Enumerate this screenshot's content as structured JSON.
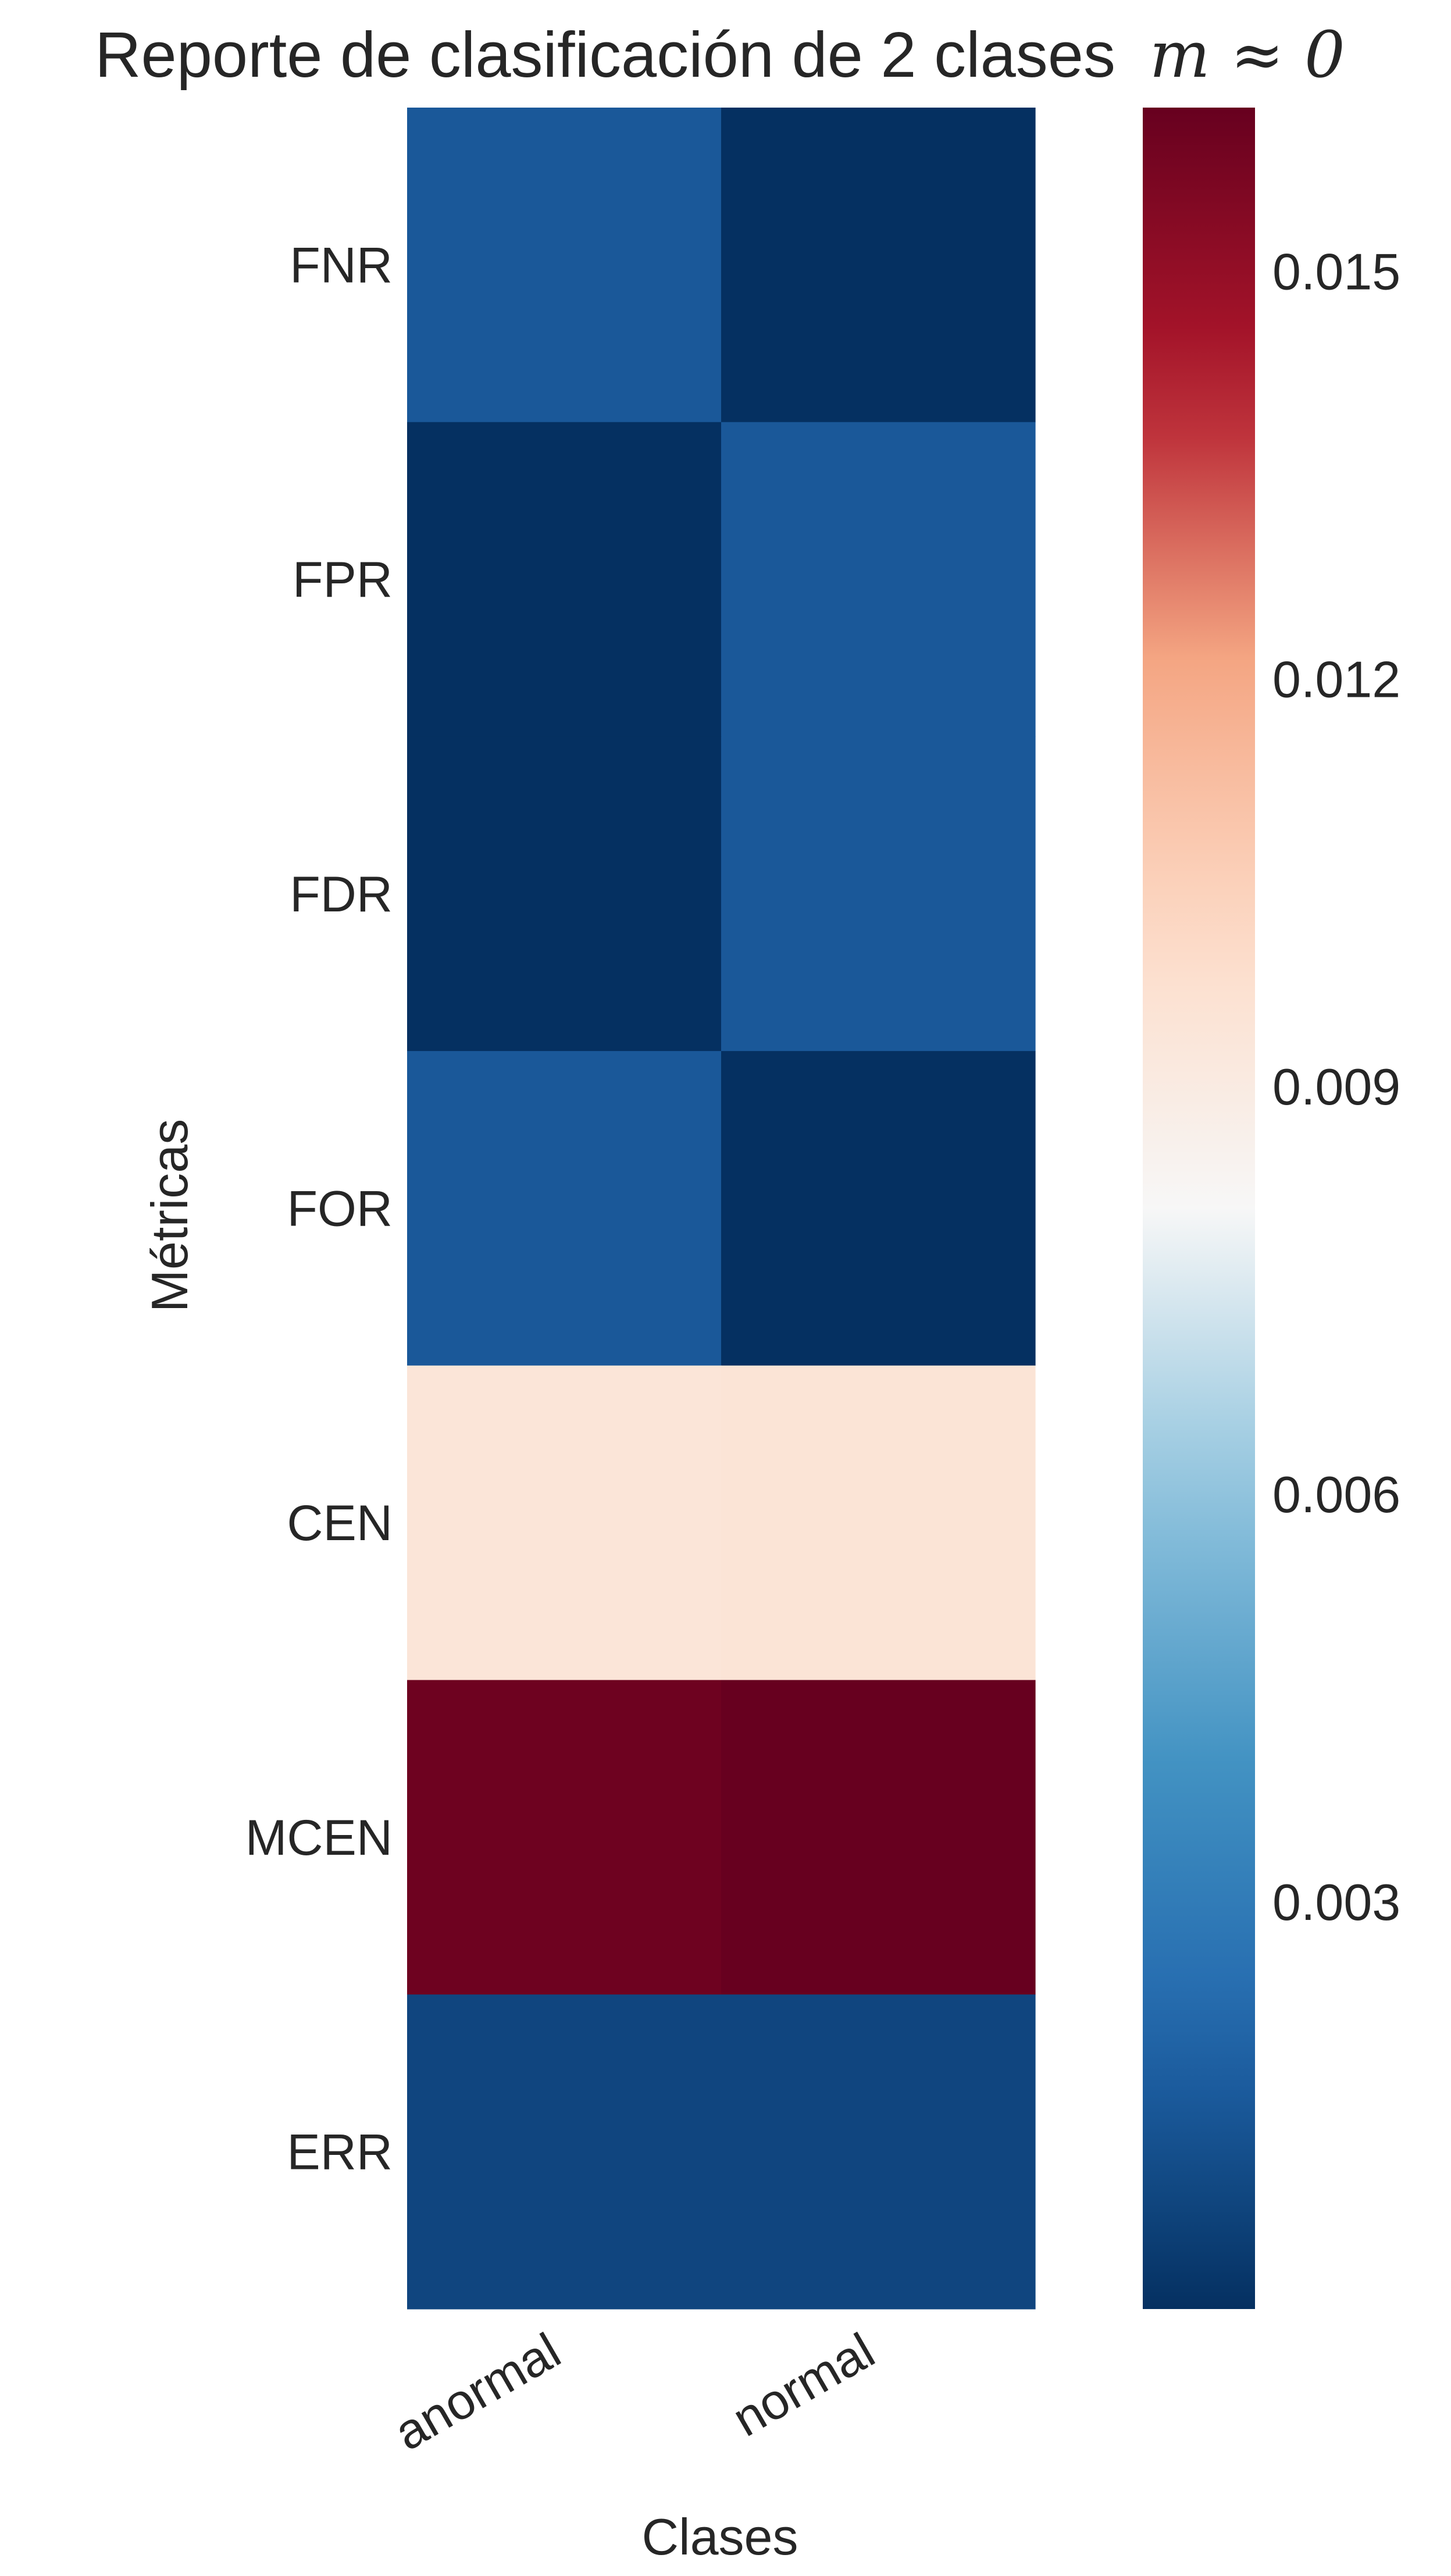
{
  "chart_data": {
    "type": "heatmap",
    "title": "Reporte de clasificación de 2 clases",
    "title_math": "m ≈ 0",
    "xlabel": "Clases",
    "ylabel": "Métricas",
    "x_categories": [
      "anormal",
      "normal"
    ],
    "y_categories": [
      "FNR",
      "FPR",
      "FDR",
      "FOR",
      "CEN",
      "MCEN",
      "ERR"
    ],
    "values": [
      [
        0.0015,
        0.0
      ],
      [
        0.0,
        0.0015
      ],
      [
        0.0,
        0.0015
      ],
      [
        0.0015,
        0.0
      ],
      [
        0.0094,
        0.0095
      ],
      [
        0.016,
        0.0162
      ],
      [
        0.0008,
        0.0008
      ]
    ],
    "colorbar": {
      "colormap": "RdBu_r",
      "vmin": 0.0,
      "vmax": 0.0162,
      "ticks": [
        0.003,
        0.006,
        0.009,
        0.012,
        0.015
      ],
      "tick_labels": [
        "0.003",
        "0.006",
        "0.009",
        "0.012",
        "0.015"
      ]
    }
  }
}
